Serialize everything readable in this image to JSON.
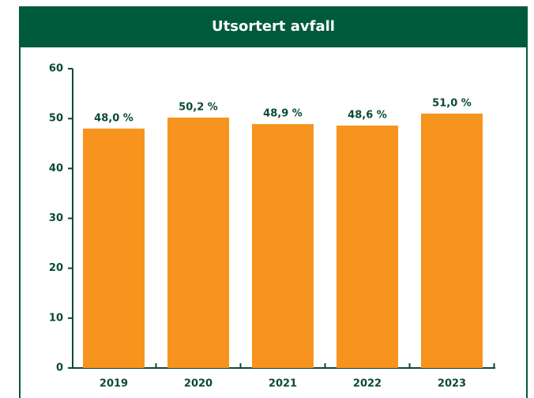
{
  "chart_data": {
    "type": "bar",
    "title": "Utsortert avfall",
    "categories": [
      "2019",
      "2020",
      "2021",
      "2022",
      "2023"
    ],
    "values": [
      48.0,
      50.2,
      48.9,
      48.6,
      51.0
    ],
    "value_labels": [
      "48,0 %",
      "50,2 %",
      "48,9 %",
      "48,6 %",
      "51,0 %"
    ],
    "color": "#f7941d",
    "ylim": [
      0,
      60
    ],
    "yticks": [
      0,
      10,
      20,
      30,
      40,
      50,
      60
    ],
    "grid": false
  }
}
